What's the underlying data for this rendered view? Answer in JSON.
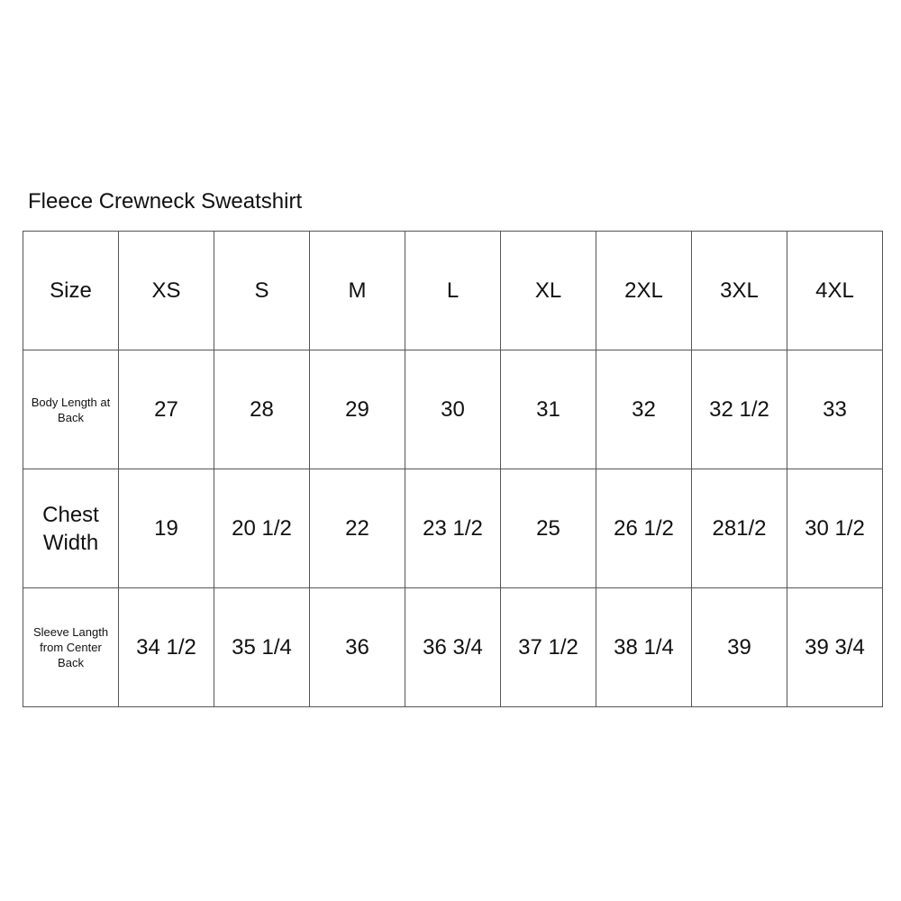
{
  "title": "Fleece Crewneck Sweatshirt",
  "table": {
    "header": {
      "label": "Size",
      "values": [
        "XS",
        "S",
        "M",
        "L",
        "XL",
        "2XL",
        "3XL",
        "4XL"
      ]
    },
    "rows": [
      {
        "label": "Body Length at Back",
        "values": [
          "27",
          "28",
          "29",
          "30",
          "31",
          "32",
          "32 1/2",
          "33"
        ]
      },
      {
        "label": "Chest Width",
        "values": [
          "19",
          "20 1/2",
          "22",
          "23 1/2",
          "25",
          "26 1/2",
          "281/2",
          "30 1/2"
        ]
      },
      {
        "label": "Sleeve Langth from Center Back",
        "values": [
          "34 1/2",
          "35 1/4",
          "36",
          "36 3/4",
          "37 1/2",
          "38 1/4",
          "39",
          "39 3/4"
        ]
      }
    ]
  }
}
